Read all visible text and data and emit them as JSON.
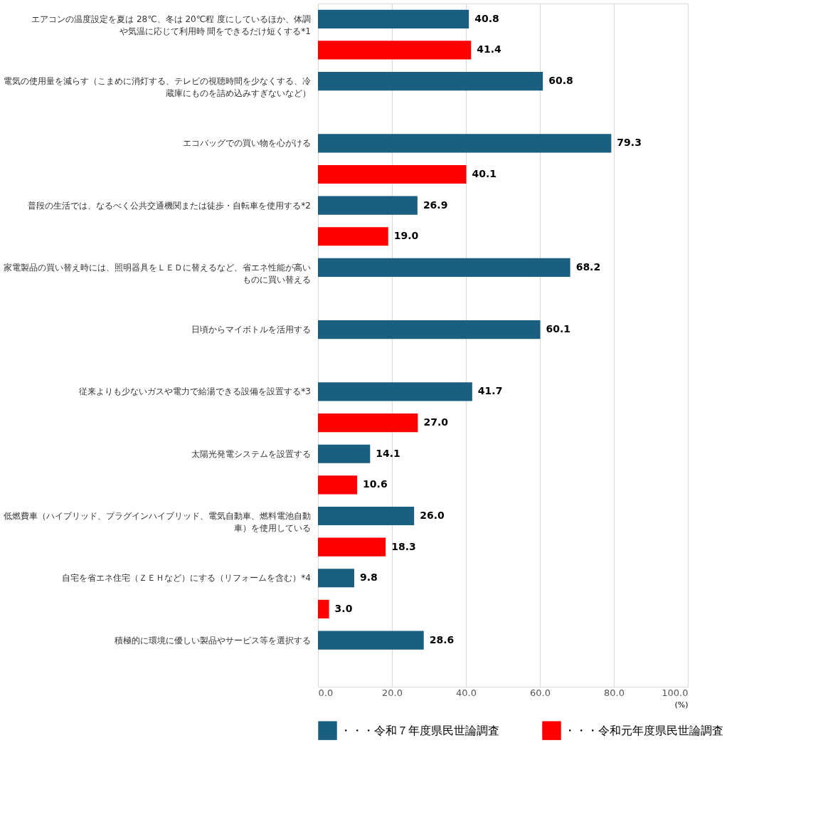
{
  "chart_data": {
    "type": "bar",
    "orientation": "horizontal",
    "categories": [
      "エアコンの温度設定を夏は 28℃、冬は 20℃程 度にしているほか、体調や気温に応じて利用時 間をできるだけ短くする*1",
      "電気の使用量を減らす（こまめに消灯する、テレビの視聴時間を少なくする、冷蔵庫にものを詰め込みすぎないなど）",
      "エコバッグでの買い物を心がける",
      "普段の生活では、なるべく公共交通機関または徒歩・自転車を使用する*2",
      "家電製品の買い替え時には、照明器具をＬＥＤに替えるなど、省エネ性能が高いものに買い替える",
      "日頃からマイボトルを活用する",
      "従来よりも少ないガスや電力で給湯できる設備を設置する*3",
      "太陽光発電システムを設置する",
      "低燃費車（ハイブリッド、プラグインハイブリッド、電気自動車、燃料電池自動車）を使用している",
      "自宅を省エネ住宅（ＺＥＨなど）にする（リフォームを含む）*4",
      "積極的に環境に優しい製品やサービス等を選択する"
    ],
    "series": [
      {
        "name": "・・・令和７年度県民世論調査",
        "color": "#1a5e80",
        "values": [
          40.8,
          60.8,
          79.3,
          26.9,
          68.2,
          60.1,
          41.7,
          14.1,
          26.0,
          9.8,
          28.6
        ],
        "value_labels": [
          "40.8",
          "60.8",
          "79.3",
          "26.9",
          "68.2",
          "60.1",
          "41.7",
          "14.1",
          "26.0",
          "9.8",
          "28.6"
        ]
      },
      {
        "name": "・・・令和元年度県民世論調査",
        "color": "#ff0000",
        "values": [
          41.4,
          null,
          40.1,
          19.0,
          null,
          null,
          27.0,
          10.6,
          18.3,
          3.0,
          null
        ],
        "value_labels": [
          "41.4",
          null,
          "40.1",
          "19.0",
          null,
          null,
          "27.0",
          "10.6",
          "18.3",
          "3.0",
          null
        ]
      }
    ],
    "xlim": [
      0,
      100
    ],
    "xticks": [
      {
        "value": 0,
        "label": "0.0"
      },
      {
        "value": 20,
        "label": "20.0"
      },
      {
        "value": 40,
        "label": "40.0"
      },
      {
        "value": 60,
        "label": "60.0"
      },
      {
        "value": 80,
        "label": "80.0"
      },
      {
        "value": 100,
        "label": "100.0"
      }
    ],
    "xlabel": "(%)",
    "grid": "x",
    "legend": "bottom"
  }
}
